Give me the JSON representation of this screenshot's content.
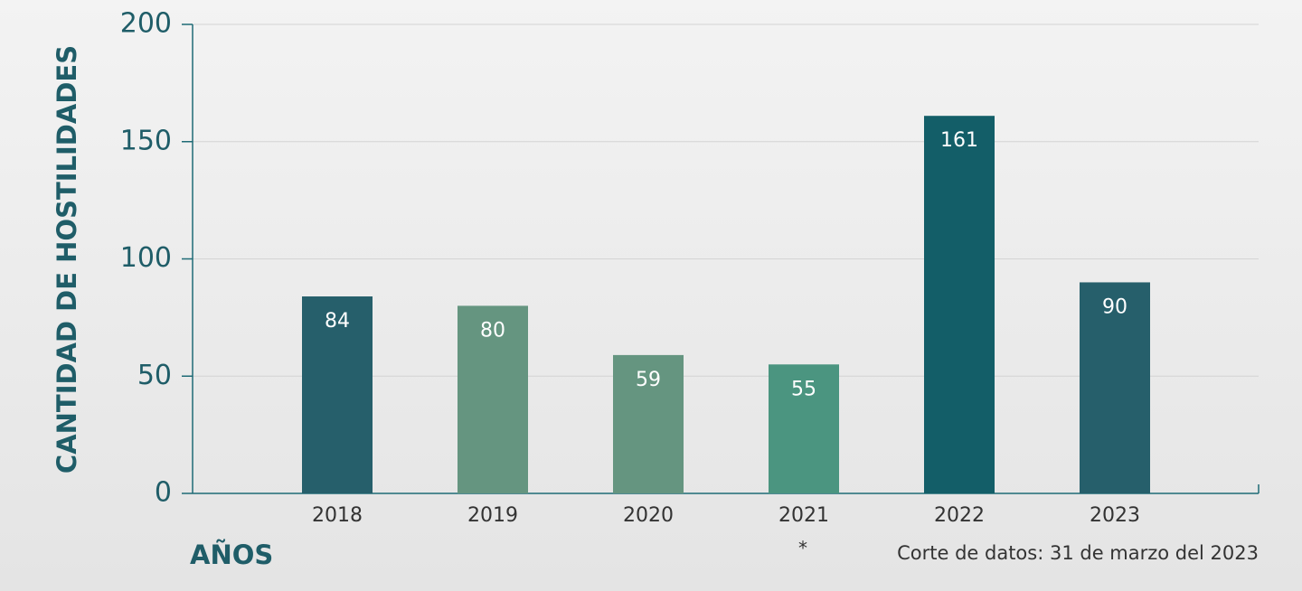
{
  "chart_data": {
    "type": "bar",
    "ylabel": "CANTIDAD DE HOSTILIDADES",
    "xlabel": "AÑOS",
    "footnote_marker": "*",
    "footnote": "Corte de datos: 31 de marzo del 2023",
    "categories": [
      "2018",
      "2019",
      "2020",
      "2021",
      "2022",
      "2023"
    ],
    "values": [
      84,
      80,
      59,
      55,
      161,
      90
    ],
    "colors": [
      "#265f6b",
      "#659580",
      "#659580",
      "#4b9580",
      "#135e68",
      "#265f6b"
    ],
    "ylim": [
      0,
      200
    ],
    "yticks": [
      0,
      50,
      100,
      150,
      200
    ],
    "grid": true
  }
}
